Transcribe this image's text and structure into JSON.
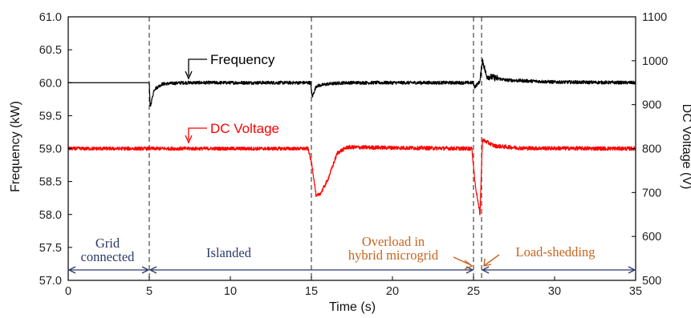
{
  "chart_data": {
    "type": "line",
    "xlabel": "Time (s)",
    "ylabel_left": "Frequency (kW)",
    "ylabel_right": "DC Voltage (V)",
    "xlim": [
      0,
      35
    ],
    "ylim_left": [
      57.0,
      61.0
    ],
    "ylim_right": [
      500,
      1100
    ],
    "x_ticks": [
      "0",
      "5",
      "10",
      "15",
      "20",
      "25",
      "30",
      "35"
    ],
    "y_left_ticks": [
      "57.0",
      "57.5",
      "58.0",
      "58.5",
      "59.0",
      "59.5",
      "60.0",
      "60.5",
      "61.0"
    ],
    "y_right_ticks": [
      "500",
      "600",
      "700",
      "800",
      "900",
      "1000",
      "1100"
    ],
    "event_times": [
      5,
      15,
      25,
      25.5
    ],
    "series": [
      {
        "name": "Frequency",
        "axis": "left",
        "color": "#000000",
        "points": [
          [
            0,
            60.0
          ],
          [
            5,
            60.0
          ],
          [
            5.05,
            59.62
          ],
          [
            5.3,
            59.9
          ],
          [
            5.8,
            59.98
          ],
          [
            7,
            60.0
          ],
          [
            14.95,
            60.0
          ],
          [
            15.05,
            59.78
          ],
          [
            15.3,
            59.95
          ],
          [
            16,
            59.98
          ],
          [
            17,
            60.0
          ],
          [
            25,
            60.0
          ],
          [
            25.05,
            59.93
          ],
          [
            25.4,
            60.02
          ],
          [
            25.55,
            60.35
          ],
          [
            25.8,
            60.1
          ],
          [
            27,
            60.04
          ],
          [
            30,
            60.01
          ],
          [
            35,
            60.0
          ]
        ]
      },
      {
        "name": "DC Voltage",
        "axis": "right",
        "color": "#ff0000",
        "points": [
          [
            0,
            800
          ],
          [
            14.8,
            800
          ],
          [
            15.05,
            760
          ],
          [
            15.3,
            690
          ],
          [
            15.6,
            700
          ],
          [
            16.0,
            728
          ],
          [
            16.6,
            790
          ],
          [
            17.2,
            803
          ],
          [
            20,
            802
          ],
          [
            24.9,
            800
          ],
          [
            25.1,
            720
          ],
          [
            25.4,
            650
          ],
          [
            25.55,
            820
          ],
          [
            26.3,
            806
          ],
          [
            28,
            801
          ],
          [
            35,
            800
          ]
        ]
      }
    ],
    "annotations": [
      {
        "text": "Frequency",
        "series": "Frequency"
      },
      {
        "text": "DC Voltage",
        "series": "DC Voltage"
      }
    ],
    "phases": [
      {
        "lines": [
          "Grid",
          "connected"
        ],
        "start": 0,
        "end": 5,
        "color": "#2b3a6b"
      },
      {
        "lines": [
          "Islanded"
        ],
        "start": 5,
        "end": 25,
        "color": "#2b3a6b"
      },
      {
        "lines": [
          "Overload in",
          "hybrid microgrid"
        ],
        "start": 25,
        "end": 25.5,
        "color": "#c8641e"
      },
      {
        "lines": [
          "Load-shedding"
        ],
        "start": 25.5,
        "end": 35,
        "color": "#c8641e"
      }
    ],
    "phase_arrow_color": "#2b3a6b"
  }
}
